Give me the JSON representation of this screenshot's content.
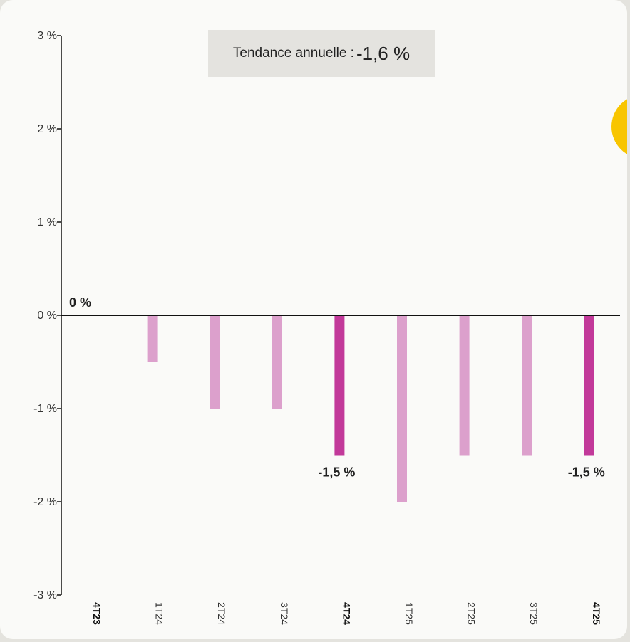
{
  "trend": {
    "label": "Tendance annuelle :",
    "value": "-1,6 %"
  },
  "colors": {
    "highlight": "#c2399a",
    "normal": "#dca0cc",
    "panel": "#fafaf8",
    "trend_box": "#e4e3df",
    "yellow_accent": "#f8c500"
  },
  "chart_data": {
    "type": "bar",
    "categories": [
      "4T23",
      "1T24",
      "2T24",
      "3T24",
      "4T24",
      "1T25",
      "2T25",
      "3T25",
      "4T25"
    ],
    "values": [
      0,
      -0.5,
      -1.0,
      -1.0,
      -1.5,
      -2.0,
      -1.5,
      -1.5,
      -1.5
    ],
    "highlighted": [
      "4T23",
      "4T24",
      "4T25"
    ],
    "data_labels": [
      {
        "category": "4T23",
        "text": "0 %"
      },
      {
        "category": "4T24",
        "text": "-1,5 %"
      },
      {
        "category": "4T25",
        "text": "-1,5 %"
      }
    ],
    "ylim": [
      -3,
      3
    ],
    "yticks": [
      3,
      2,
      1,
      0,
      -1,
      -2,
      -3
    ],
    "ytick_labels": [
      "3 %",
      "2 %",
      "1 %",
      "0 %",
      "-1 %",
      "-2 %",
      "-3 %"
    ],
    "title": "",
    "xlabel": "",
    "ylabel": "",
    "grid": false,
    "legend": "none"
  }
}
